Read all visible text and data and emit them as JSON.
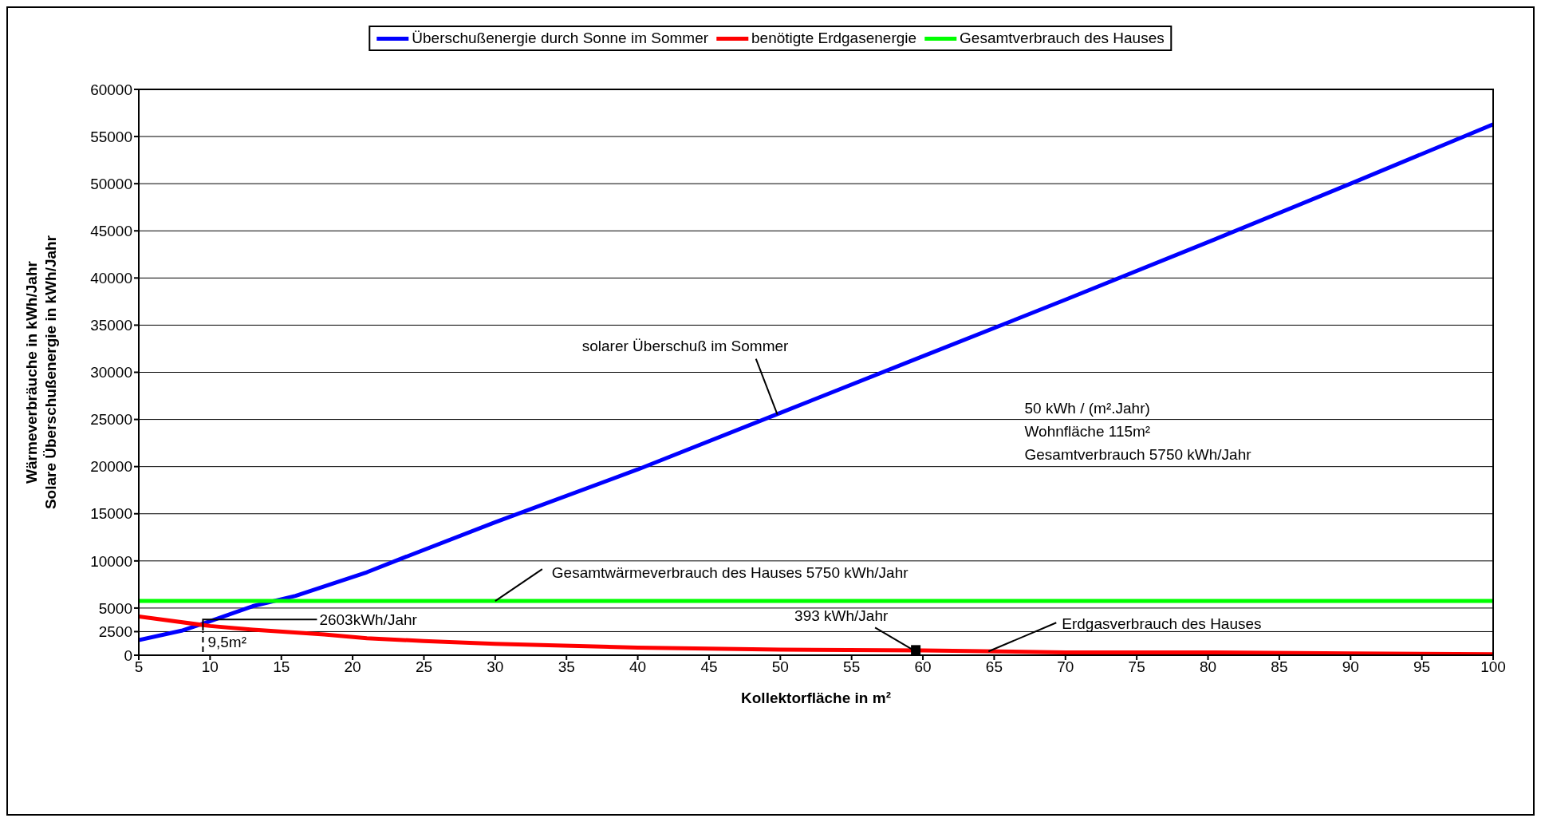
{
  "chart_data": {
    "type": "line",
    "xlabel": "Kollektorfläche in m²",
    "ylabel": "Wärmeverbräuche in kWh/Jahr\nSolare Überschußenergie in kWh/Jahr",
    "series": [
      {
        "name": "Überschußenergie durch Sonne im Sommer",
        "color": "#0000ff",
        "x": [
          5,
          8,
          10,
          13,
          16,
          21,
          23,
          30,
          40,
          50,
          60,
          70,
          80,
          90,
          100
        ],
        "values": [
          1600,
          2600,
          3600,
          5200,
          6300,
          8800,
          10000,
          14100,
          19700,
          25700,
          31700,
          37700,
          43800,
          50000,
          56300
        ]
      },
      {
        "name": "benötigte Erdgasenergie",
        "color": "#ff0000",
        "x": [
          5,
          10,
          13,
          18,
          21,
          25,
          30,
          40,
          50,
          60,
          70,
          80,
          90,
          100
        ],
        "values": [
          4100,
          3100,
          2700,
          2200,
          1800,
          1500,
          1200,
          800,
          600,
          500,
          300,
          300,
          200,
          100
        ]
      },
      {
        "name": "Gesamtverbrauch des Hauses",
        "color": "#00ff00",
        "x": [
          5,
          100
        ],
        "values": [
          5750,
          5750
        ]
      }
    ],
    "xlim": [
      5,
      100
    ],
    "xticks": [
      5,
      10,
      15,
      20,
      25,
      30,
      35,
      40,
      45,
      50,
      55,
      60,
      65,
      70,
      75,
      80,
      85,
      90,
      95,
      100
    ],
    "ylim": [
      0,
      60000
    ],
    "yticks": [
      0,
      2500,
      5000,
      10000,
      15000,
      20000,
      25000,
      30000,
      35000,
      40000,
      45000,
      50000,
      55000,
      60000
    ],
    "grid": "y",
    "legend": "top",
    "marker": "none",
    "line_style": "solid",
    "annotations": [
      {
        "text": "solarer Überschuß im Sommer",
        "x": 49.8,
        "y": 25500
      },
      "50 kWh / (m².Jahr)",
      "Wohnfläche 115m²",
      "Gesamtverbrauch 5750 kWh/Jahr",
      {
        "text": "Gesamtwärmeverbrauch des Hauses 5750 kWh/Jahr",
        "x": 30,
        "y": 5750
      },
      {
        "text": "2603kWh/Jahr",
        "x": 9.5,
        "y": 2603
      },
      "9,5m²",
      {
        "text": "393 kWh/Jahr",
        "x": 59.5,
        "y": 393
      },
      {
        "text": "Erdgasverbrauch des Hauses",
        "x": 64.6,
        "y": 400
      }
    ]
  }
}
